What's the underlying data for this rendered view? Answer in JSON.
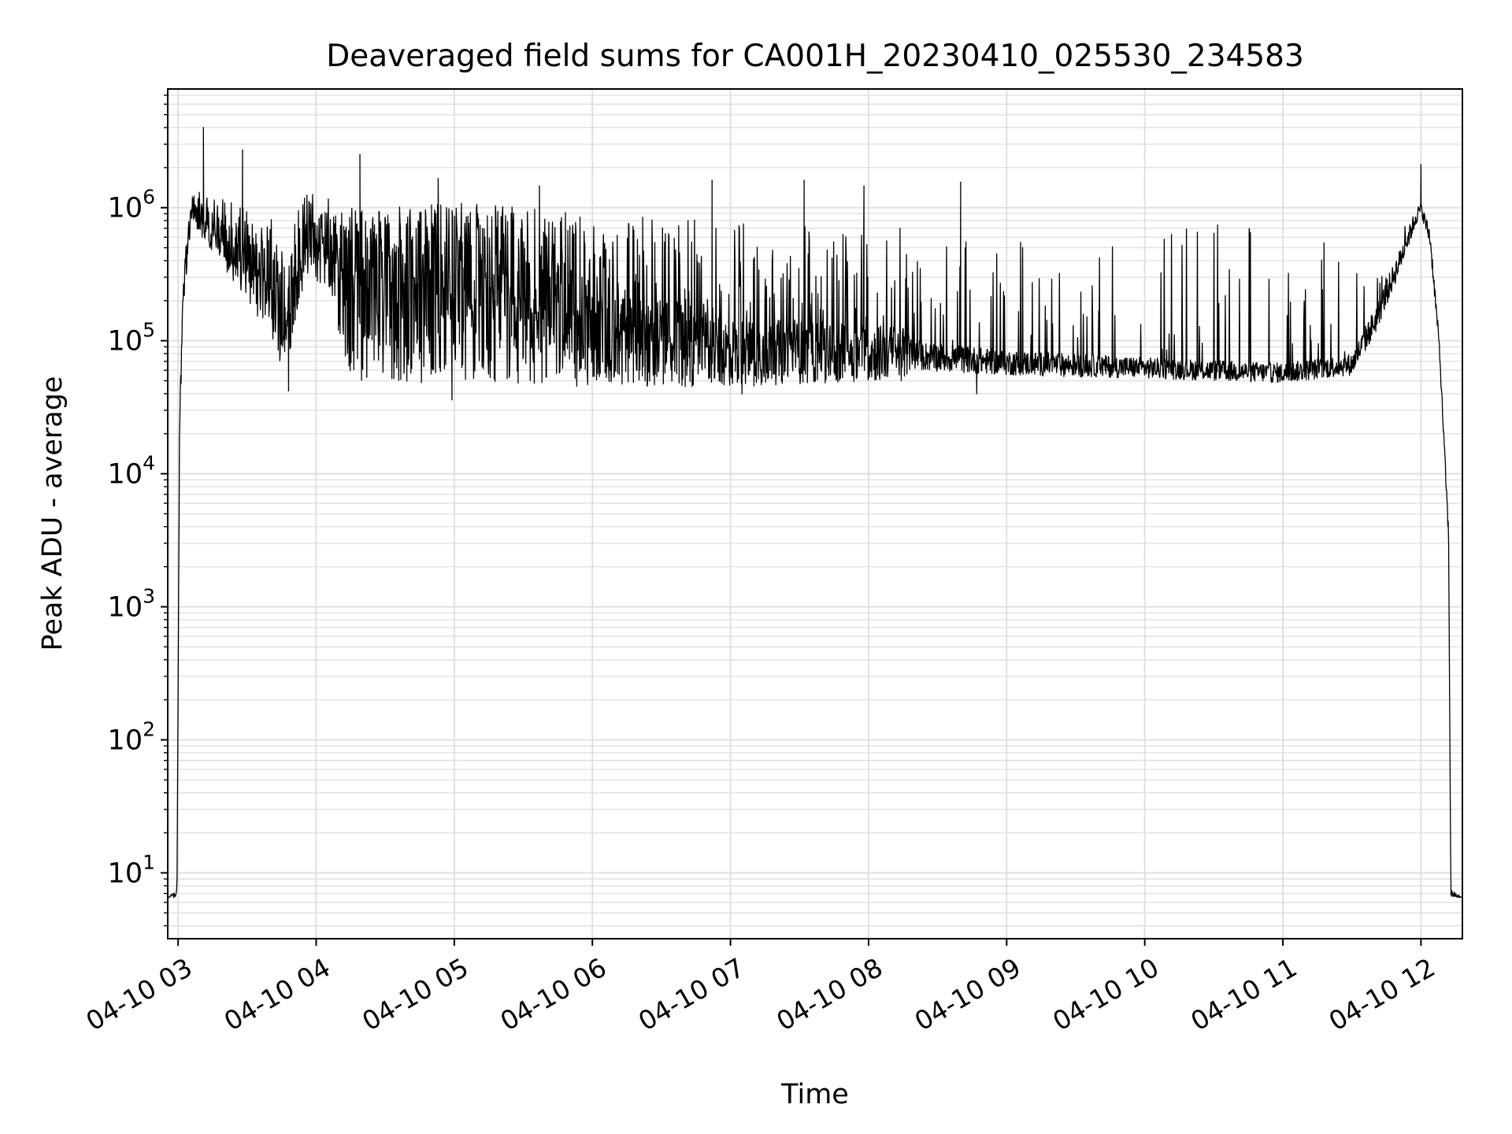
{
  "chart_data": {
    "type": "line",
    "title": "Deaveraged field sums for CA001H_20230410_025530_234583",
    "xlabel": "Time",
    "ylabel": "Peak ADU - average",
    "yscale": "log",
    "ylim": [
      3.2,
      7800000
    ],
    "xlim": [
      "2023-04-10 02:55:30",
      "2023-04-10 12:18:00"
    ],
    "grid": true,
    "grid_minor": true,
    "line_color": "#000000",
    "grid_color": "#e0e0e0",
    "x_ticks": [
      {
        "t": "2023-04-10 03:00",
        "label": "04-10 03"
      },
      {
        "t": "2023-04-10 04:00",
        "label": "04-10 04"
      },
      {
        "t": "2023-04-10 05:00",
        "label": "04-10 05"
      },
      {
        "t": "2023-04-10 06:00",
        "label": "04-10 06"
      },
      {
        "t": "2023-04-10 07:00",
        "label": "04-10 07"
      },
      {
        "t": "2023-04-10 08:00",
        "label": "04-10 08"
      },
      {
        "t": "2023-04-10 09:00",
        "label": "04-10 09"
      },
      {
        "t": "2023-04-10 10:00",
        "label": "04-10 10"
      },
      {
        "t": "2023-04-10 11:00",
        "label": "04-10 11"
      },
      {
        "t": "2023-04-10 12:00",
        "label": "04-10 12"
      }
    ],
    "y_ticks": [
      {
        "value": 10,
        "base": "10",
        "exp": "1"
      },
      {
        "value": 100,
        "base": "10",
        "exp": "2"
      },
      {
        "value": 1000,
        "base": "10",
        "exp": "3"
      },
      {
        "value": 10000,
        "base": "10",
        "exp": "4"
      },
      {
        "value": 100000,
        "base": "10",
        "exp": "5"
      },
      {
        "value": 1000000,
        "base": "10",
        "exp": "6"
      }
    ],
    "series": [
      {
        "envelope": [
          {
            "t": "2023-04-10 02:55:30",
            "low": 6.5,
            "high": 6.5,
            "spike_rate": 0,
            "spike_max": 0
          },
          {
            "t": "2023-04-10 02:59:30",
            "low": 6.5,
            "high": 7.5,
            "spike_rate": 0,
            "spike_max": 0
          },
          {
            "t": "2023-04-10 03:00:40",
            "low": 20000,
            "high": 30000,
            "spike_rate": 0,
            "spike_max": 0
          },
          {
            "t": "2023-04-10 03:02:30",
            "low": 200000,
            "high": 400000,
            "spike_rate": 0,
            "spike_max": 0
          },
          {
            "t": "2023-04-10 03:06:00",
            "low": 800000,
            "high": 1300000,
            "spike_rate": 0.15,
            "spike_max": 1600000
          },
          {
            "t": "2023-04-10 03:10:00",
            "low": 600000,
            "high": 1100000,
            "spike_rate": 0.15,
            "spike_max": 1500000
          },
          {
            "t": "2023-04-10 03:20:00",
            "low": 350000,
            "high": 800000,
            "spike_rate": 0.15,
            "spike_max": 1300000
          },
          {
            "t": "2023-04-10 03:30:00",
            "low": 200000,
            "high": 700000,
            "spike_rate": 0.12,
            "spike_max": 1000000
          },
          {
            "t": "2023-04-10 03:40:00",
            "low": 100000,
            "high": 500000,
            "spike_rate": 0.12,
            "spike_max": 900000
          },
          {
            "t": "2023-04-10 03:48:00",
            "low": 50000,
            "high": 250000,
            "spike_rate": 0.1,
            "spike_max": 800000
          },
          {
            "t": "2023-04-10 03:55:00",
            "low": 300000,
            "high": 900000,
            "spike_rate": 0.15,
            "spike_max": 1300000
          },
          {
            "t": "2023-04-10 04:05:00",
            "low": 250000,
            "high": 900000,
            "spike_rate": 0.15,
            "spike_max": 1300000
          },
          {
            "t": "2023-04-10 04:15:00",
            "low": 50000,
            "high": 400000,
            "spike_rate": 0.3,
            "spike_max": 1000000
          },
          {
            "t": "2023-04-10 05:00:00",
            "low": 45000,
            "high": 450000,
            "spike_rate": 0.35,
            "spike_max": 1100000
          },
          {
            "t": "2023-04-10 06:00:00",
            "low": 45000,
            "high": 300000,
            "spike_rate": 0.3,
            "spike_max": 900000
          },
          {
            "t": "2023-04-10 07:00:00",
            "low": 45000,
            "high": 150000,
            "spike_rate": 0.2,
            "spike_max": 800000
          },
          {
            "t": "2023-04-10 08:15:00",
            "low": 50000,
            "high": 130000,
            "spike_rate": 0.15,
            "spike_max": 700000
          },
          {
            "t": "2023-04-10 08:20:00",
            "low": 60000,
            "high": 100000,
            "spike_rate": 0.07,
            "spike_max": 500000
          },
          {
            "t": "2023-04-10 09:00:00",
            "low": 55000,
            "high": 85000,
            "spike_rate": 0.06,
            "spike_max": 600000
          },
          {
            "t": "2023-04-10 10:00:00",
            "low": 52000,
            "high": 75000,
            "spike_rate": 0.05,
            "spike_max": 700000
          },
          {
            "t": "2023-04-10 11:00:00",
            "low": 48000,
            "high": 68000,
            "spike_rate": 0.07,
            "spike_max": 900000
          },
          {
            "t": "2023-04-10 11:30:00",
            "low": 55000,
            "high": 80000,
            "spike_rate": 0.06,
            "spike_max": 800000
          },
          {
            "t": "2023-04-10 11:40:00",
            "low": 110000,
            "high": 180000,
            "spike_rate": 0.05,
            "spike_max": 300000
          },
          {
            "t": "2023-04-10 11:50:00",
            "low": 300000,
            "high": 450000,
            "spike_rate": 0.05,
            "spike_max": 600000
          },
          {
            "t": "2023-04-10 11:58:00",
            "low": 750000,
            "high": 1000000,
            "spike_rate": 0.05,
            "spike_max": 1200000
          },
          {
            "t": "2023-04-10 12:00:00",
            "low": 900000,
            "high": 1100000,
            "spike_rate": 0,
            "spike_max": 0
          },
          {
            "t": "2023-04-10 12:04:00",
            "low": 500000,
            "high": 700000,
            "spike_rate": 0,
            "spike_max": 0
          },
          {
            "t": "2023-04-10 12:08:00",
            "low": 80000,
            "high": 100000,
            "spike_rate": 0,
            "spike_max": 0
          },
          {
            "t": "2023-04-10 12:12:00",
            "low": 3000,
            "high": 4000,
            "spike_rate": 0,
            "spike_max": 0
          },
          {
            "t": "2023-04-10 12:13:00",
            "low": 6.5,
            "high": 7.5,
            "spike_rate": 0,
            "spike_max": 0
          },
          {
            "t": "2023-04-10 12:18:00",
            "low": 6.5,
            "high": 6.5,
            "spike_rate": 0,
            "spike_max": 0
          }
        ],
        "peaks": [
          {
            "t": "2023-04-10 03:11:00",
            "value": 4000000
          },
          {
            "t": "2023-04-10 03:28:00",
            "value": 2700000
          },
          {
            "t": "2023-04-10 04:19:00",
            "value": 2500000
          },
          {
            "t": "2023-04-10 04:53:00",
            "value": 1650000
          },
          {
            "t": "2023-04-10 05:37:00",
            "value": 1450000
          },
          {
            "t": "2023-04-10 06:52:00",
            "value": 1600000
          },
          {
            "t": "2023-04-10 07:32:00",
            "value": 1600000
          },
          {
            "t": "2023-04-10 07:58:00",
            "value": 1450000
          },
          {
            "t": "2023-04-10 08:40:00",
            "value": 1550000
          },
          {
            "t": "2023-04-10 12:00:00",
            "value": 2100000
          }
        ],
        "dips": [
          {
            "t": "2023-04-10 03:48:00",
            "value": 42000
          },
          {
            "t": "2023-04-10 04:59:00",
            "value": 36000
          },
          {
            "t": "2023-04-10 07:05:00",
            "value": 40000
          },
          {
            "t": "2023-04-10 08:47:00",
            "value": 40000
          }
        ]
      }
    ]
  }
}
